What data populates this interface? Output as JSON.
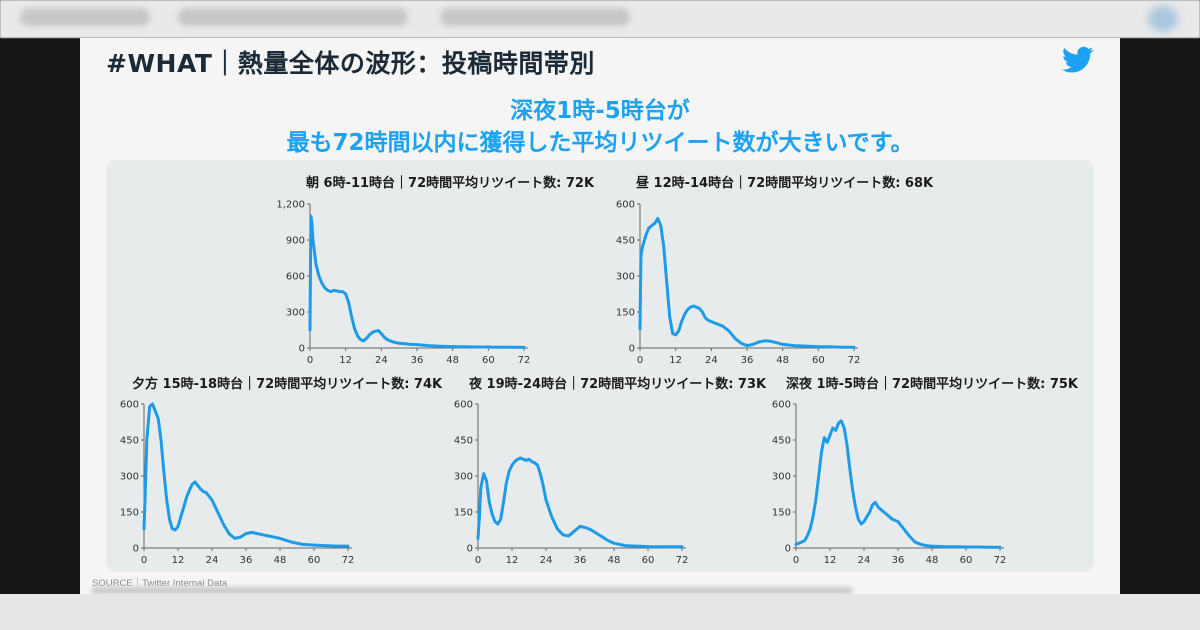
{
  "slide": {
    "title": "#WHAT｜熱量全体の波形：投稿時間帯別",
    "headline_line1": "深夜1時-5時台が",
    "headline_line2": "最も72時間以内に獲得した平均リツイート数が大きいです。",
    "source": "SOURCE｜Twitter Internal Data"
  },
  "colors": {
    "accent": "#1da1f2",
    "line": "#1d9be8",
    "panel": "#e7ebec"
  },
  "icons": {
    "brand": "twitter-bird-icon"
  },
  "chart_data": [
    {
      "type": "line",
      "title": "朝 6時-11時台｜72時間平均リツイート数: 72K",
      "xlim": [
        0,
        72
      ],
      "ylim": [
        0,
        1200
      ],
      "xticks": [
        0,
        12,
        24,
        36,
        48,
        60,
        72
      ],
      "yticks": [
        0,
        300,
        600,
        900,
        1200
      ],
      "yticklabels": [
        "0",
        "300",
        "600",
        "900",
        "1,200"
      ],
      "series": [
        {
          "x": [
            0,
            0.3,
            0.6,
            1,
            1.5,
            2,
            3,
            4,
            5,
            6,
            7,
            8,
            9,
            10,
            11,
            12,
            13,
            14,
            15,
            16,
            17,
            18,
            19,
            20,
            21,
            22,
            23,
            24,
            25,
            26,
            28,
            30,
            32,
            34,
            36,
            40,
            44,
            48,
            52,
            56,
            60,
            64,
            68,
            72
          ],
          "y": [
            150,
            1100,
            1050,
            900,
            800,
            700,
            600,
            540,
            500,
            480,
            470,
            480,
            475,
            470,
            470,
            450,
            380,
            260,
            160,
            100,
            70,
            60,
            80,
            110,
            130,
            140,
            145,
            120,
            90,
            70,
            50,
            40,
            35,
            30,
            28,
            20,
            15,
            12,
            10,
            8,
            8,
            6,
            6,
            5
          ]
        }
      ]
    },
    {
      "type": "line",
      "title": "昼 12時-14時台｜72時間平均リツイート数: 68K",
      "xlim": [
        0,
        72
      ],
      "ylim": [
        0,
        600
      ],
      "xticks": [
        0,
        12,
        24,
        36,
        48,
        60,
        72
      ],
      "yticks": [
        0,
        150,
        300,
        450,
        600
      ],
      "yticklabels": [
        "0",
        "150",
        "300",
        "450",
        "600"
      ],
      "series": [
        {
          "x": [
            0,
            0.3,
            0.8,
            1.5,
            2,
            3,
            4,
            5,
            6,
            7,
            8,
            9,
            10,
            11,
            12,
            13,
            14,
            15,
            16,
            17,
            18,
            19,
            20,
            21,
            22,
            23,
            24,
            26,
            28,
            30,
            32,
            34,
            36,
            38,
            40,
            42,
            44,
            46,
            48,
            52,
            56,
            60,
            64,
            68,
            72
          ],
          "y": [
            80,
            380,
            420,
            450,
            470,
            500,
            510,
            520,
            540,
            510,
            420,
            270,
            130,
            60,
            55,
            70,
            110,
            140,
            160,
            170,
            175,
            170,
            165,
            150,
            125,
            115,
            110,
            100,
            90,
            70,
            40,
            20,
            10,
            15,
            25,
            30,
            28,
            22,
            15,
            10,
            8,
            5,
            5,
            3,
            3
          ]
        }
      ]
    },
    {
      "type": "line",
      "title": "夕方 15時-18時台｜72時間平均リツイート数: 74K",
      "xlim": [
        0,
        72
      ],
      "ylim": [
        0,
        600
      ],
      "xticks": [
        0,
        12,
        24,
        36,
        48,
        60,
        72
      ],
      "yticks": [
        0,
        150,
        300,
        450,
        600
      ],
      "yticklabels": [
        "0",
        "150",
        "300",
        "450",
        "600"
      ],
      "series": [
        {
          "x": [
            0,
            0.5,
            1,
            2,
            3,
            4,
            5,
            6,
            7,
            8,
            9,
            10,
            11,
            12,
            13,
            14,
            15,
            16,
            17,
            18,
            19,
            20,
            21,
            22,
            23,
            24,
            26,
            28,
            30,
            32,
            34,
            36,
            38,
            40,
            42,
            44,
            46,
            48,
            52,
            56,
            60,
            64,
            68,
            72
          ],
          "y": [
            80,
            250,
            450,
            590,
            600,
            570,
            540,
            450,
            320,
            200,
            120,
            80,
            75,
            90,
            130,
            170,
            210,
            240,
            265,
            275,
            260,
            245,
            235,
            230,
            215,
            200,
            150,
            100,
            60,
            40,
            45,
            60,
            65,
            60,
            55,
            50,
            45,
            40,
            25,
            15,
            12,
            10,
            8,
            8
          ]
        }
      ]
    },
    {
      "type": "line",
      "title": "夜 19時-24時台｜72時間平均リツイート数: 73K",
      "xlim": [
        0,
        72
      ],
      "ylim": [
        0,
        600
      ],
      "xticks": [
        0,
        12,
        24,
        36,
        48,
        60,
        72
      ],
      "yticks": [
        0,
        150,
        300,
        450,
        600
      ],
      "yticklabels": [
        "0",
        "150",
        "300",
        "450",
        "600"
      ],
      "series": [
        {
          "x": [
            0,
            0.5,
            1,
            2,
            3,
            4,
            5,
            6,
            7,
            8,
            9,
            10,
            11,
            12,
            13,
            14,
            15,
            16,
            17,
            18,
            19,
            20,
            21,
            22,
            23,
            24,
            26,
            28,
            30,
            32,
            34,
            36,
            38,
            40,
            42,
            44,
            46,
            48,
            52,
            56,
            60,
            64,
            68,
            72
          ],
          "y": [
            40,
            130,
            250,
            310,
            280,
            190,
            140,
            110,
            100,
            120,
            190,
            270,
            320,
            345,
            360,
            370,
            375,
            370,
            365,
            370,
            360,
            355,
            345,
            310,
            260,
            200,
            130,
            80,
            55,
            50,
            70,
            90,
            85,
            75,
            60,
            45,
            30,
            20,
            10,
            8,
            6,
            5,
            5,
            5
          ]
        }
      ]
    },
    {
      "type": "line",
      "title": "深夜 1時-5時台｜72時間平均リツイート数: 75K",
      "xlim": [
        0,
        72
      ],
      "ylim": [
        0,
        600
      ],
      "xticks": [
        0,
        12,
        24,
        36,
        48,
        60,
        72
      ],
      "yticks": [
        0,
        150,
        300,
        450,
        600
      ],
      "yticklabels": [
        "0",
        "150",
        "300",
        "450",
        "600"
      ],
      "series": [
        {
          "x": [
            0,
            1,
            2,
            3,
            4,
            5,
            6,
            7,
            8,
            9,
            10,
            11,
            12,
            13,
            14,
            15,
            16,
            17,
            18,
            19,
            20,
            21,
            22,
            23,
            24,
            25,
            26,
            27,
            28,
            29,
            30,
            31,
            32,
            34,
            36,
            38,
            40,
            42,
            44,
            46,
            48,
            52,
            56,
            60,
            64,
            68,
            72
          ],
          "y": [
            15,
            20,
            25,
            30,
            50,
            80,
            130,
            200,
            300,
            400,
            460,
            440,
            470,
            500,
            490,
            520,
            530,
            500,
            430,
            330,
            240,
            170,
            120,
            100,
            110,
            130,
            150,
            180,
            190,
            170,
            160,
            150,
            140,
            120,
            110,
            80,
            50,
            25,
            15,
            10,
            8,
            6,
            5,
            4,
            4,
            3,
            3
          ]
        }
      ]
    }
  ]
}
